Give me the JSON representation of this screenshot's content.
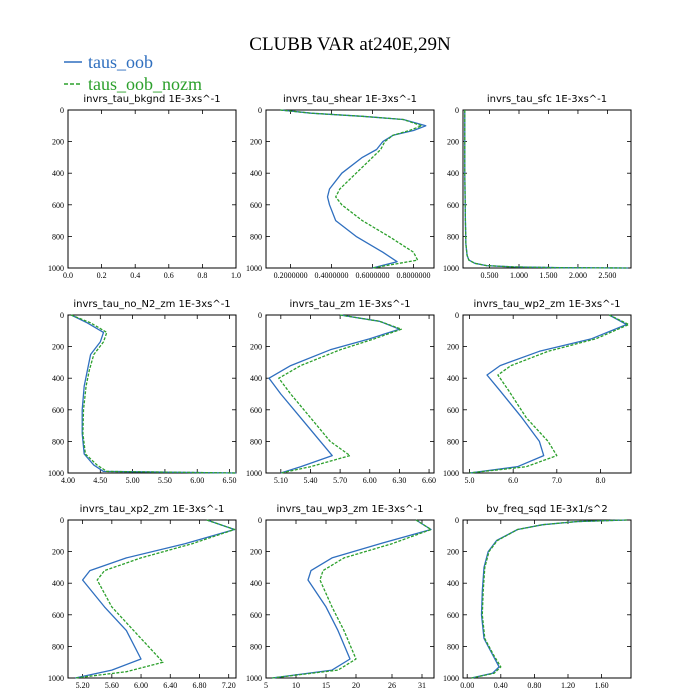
{
  "title": "CLUBB VAR at240E,29N",
  "legend": [
    {
      "label": "taus_oob",
      "color": "#2f6fbf",
      "dashed": false
    },
    {
      "label": "taus_oob_nozm",
      "color": "#2ca02c",
      "dashed": true
    }
  ],
  "chart_data": [
    {
      "type": "line",
      "title": "invrs_tau_bkgnd   1E-3xs^-1",
      "xlim": [
        0.0,
        1.0
      ],
      "xticks": [
        0.0,
        0.2,
        0.4,
        0.6,
        0.8,
        1.0
      ],
      "xtick_labels": [
        "0.0",
        "0.2",
        "0.4",
        "0.6",
        "0.8",
        "1.0"
      ],
      "ylim": [
        1000,
        0
      ],
      "yticks": [
        0,
        200,
        400,
        600,
        800,
        1000
      ],
      "series": []
    },
    {
      "type": "line",
      "title": "invrs_tau_shear   1E-3xs^-1",
      "xlim": [
        0.08,
        0.9
      ],
      "xticks": [
        0.2,
        0.4,
        0.6,
        0.8
      ],
      "xtick_labels": [
        "0.2000000",
        "0.4000000",
        "0.6000000",
        "0.8000000"
      ],
      "ylim": [
        1000,
        0
      ],
      "yticks": [
        0,
        200,
        400,
        600,
        800,
        1000
      ],
      "series": [
        {
          "x": [
            0.15,
            0.3,
            0.55,
            0.75,
            0.86,
            0.8,
            0.7,
            0.65,
            0.62,
            0.55,
            0.45,
            0.39,
            0.38,
            0.39,
            0.42,
            0.52,
            0.65,
            0.72,
            0.6
          ],
          "y": [
            0,
            20,
            40,
            60,
            100,
            130,
            160,
            200,
            250,
            300,
            400,
            500,
            550,
            600,
            700,
            800,
            900,
            960,
            1000
          ]
        },
        {
          "x": [
            0.15,
            0.3,
            0.55,
            0.75,
            0.84,
            0.78,
            0.7,
            0.66,
            0.64,
            0.6,
            0.52,
            0.44,
            0.42,
            0.45,
            0.55,
            0.68,
            0.8,
            0.82,
            0.6
          ],
          "y": [
            0,
            20,
            40,
            60,
            100,
            130,
            160,
            200,
            250,
            300,
            400,
            500,
            550,
            600,
            700,
            800,
            900,
            950,
            1000
          ]
        }
      ]
    },
    {
      "type": "line",
      "title": "invrs_tau_sfc   1E-3xs^-1",
      "xlim": [
        0.05,
        2.9
      ],
      "xticks": [
        0.5,
        1.0,
        1.5,
        2.0,
        2.5
      ],
      "xtick_labels": [
        "0.500",
        "1.000",
        "1.500",
        "2.000",
        "2.500"
      ],
      "ylim": [
        1000,
        0
      ],
      "yticks": [
        0,
        200,
        400,
        600,
        800,
        1000
      ],
      "series": [
        {
          "x": [
            0.08,
            0.08,
            0.09,
            0.1,
            0.12,
            0.15,
            0.25,
            0.45,
            0.9,
            1.7,
            2.85
          ],
          "y": [
            0,
            400,
            700,
            850,
            920,
            950,
            970,
            985,
            993,
            998,
            1000
          ]
        },
        {
          "x": [
            0.08,
            0.08,
            0.09,
            0.1,
            0.12,
            0.15,
            0.25,
            0.45,
            0.9,
            1.7,
            2.85
          ],
          "y": [
            0,
            400,
            700,
            850,
            920,
            950,
            970,
            985,
            993,
            998,
            1000
          ]
        }
      ]
    },
    {
      "type": "line",
      "title": "invrs_tau_no_N2_zm   1E-3xs^-1",
      "xlim": [
        4.0,
        6.6
      ],
      "xticks": [
        4.0,
        4.5,
        5.0,
        5.5,
        6.0,
        6.5
      ],
      "xtick_labels": [
        "4.00",
        "4.50",
        "5.00",
        "5.50",
        "6.00",
        "6.50"
      ],
      "ylim": [
        1000,
        0
      ],
      "yticks": [
        0,
        200,
        400,
        600,
        800,
        1000
      ],
      "series": [
        {
          "x": [
            4.05,
            4.3,
            4.55,
            4.5,
            4.35,
            4.3,
            4.25,
            4.22,
            4.22,
            4.25,
            4.4,
            4.55,
            6.6
          ],
          "y": [
            0,
            50,
            110,
            170,
            250,
            350,
            450,
            600,
            750,
            880,
            950,
            990,
            1000
          ]
        },
        {
          "x": [
            4.05,
            4.35,
            4.6,
            4.55,
            4.4,
            4.33,
            4.28,
            4.24,
            4.23,
            4.27,
            4.45,
            4.6,
            6.6
          ],
          "y": [
            0,
            50,
            110,
            170,
            250,
            350,
            450,
            600,
            750,
            880,
            950,
            990,
            1000
          ]
        }
      ]
    },
    {
      "type": "line",
      "title": "invrs_tau_zm   1E-3xs^-1",
      "xlim": [
        4.95,
        6.65
      ],
      "xticks": [
        5.1,
        5.4,
        5.7,
        6.0,
        6.3,
        6.6
      ],
      "xtick_labels": [
        "5.10",
        "5.40",
        "5.70",
        "6.00",
        "6.30",
        "6.60"
      ],
      "ylim": [
        1000,
        0
      ],
      "yticks": [
        0,
        200,
        400,
        600,
        800,
        1000
      ],
      "series": [
        {
          "x": [
            5.7,
            6.1,
            6.3,
            6.0,
            5.6,
            5.2,
            4.98,
            5.1,
            5.3,
            5.5,
            5.62,
            5.3,
            5.1
          ],
          "y": [
            0,
            40,
            90,
            150,
            220,
            320,
            400,
            500,
            650,
            800,
            890,
            960,
            1000
          ]
        },
        {
          "x": [
            5.7,
            6.1,
            6.32,
            6.05,
            5.7,
            5.3,
            5.08,
            5.2,
            5.4,
            5.6,
            5.8,
            5.4,
            5.1
          ],
          "y": [
            0,
            40,
            90,
            150,
            220,
            320,
            400,
            500,
            650,
            800,
            890,
            960,
            1000
          ]
        }
      ]
    },
    {
      "type": "line",
      "title": "invrs_tau_wp2_zm   1E-3xs^-1",
      "xlim": [
        4.85,
        8.7
      ],
      "xticks": [
        5.0,
        6.0,
        7.0,
        8.0
      ],
      "xtick_labels": [
        "5.0",
        "6.0",
        "7.0",
        "8.0"
      ],
      "ylim": [
        1000,
        0
      ],
      "yticks": [
        0,
        200,
        400,
        600,
        800,
        1000
      ],
      "series": [
        {
          "x": [
            8.2,
            8.6,
            7.8,
            6.6,
            5.7,
            5.4,
            5.7,
            6.2,
            6.6,
            6.7,
            6.1,
            5.0
          ],
          "y": [
            0,
            60,
            150,
            230,
            320,
            380,
            480,
            650,
            800,
            890,
            960,
            1000
          ]
        },
        {
          "x": [
            8.2,
            8.65,
            7.9,
            6.8,
            5.95,
            5.65,
            5.9,
            6.3,
            6.8,
            7.0,
            6.3,
            5.0
          ],
          "y": [
            0,
            60,
            150,
            230,
            320,
            380,
            480,
            650,
            800,
            890,
            960,
            1000
          ]
        }
      ]
    },
    {
      "type": "line",
      "title": "invrs_tau_xp2_zm   1E-3xs^-1",
      "xlim": [
        5.0,
        7.3
      ],
      "xticks": [
        5.2,
        5.6,
        6.0,
        6.4,
        6.8,
        7.2
      ],
      "xtick_labels": [
        "5.20",
        "5.60",
        "6.00",
        "6.40",
        "6.80",
        "7.20"
      ],
      "ylim": [
        1000,
        0
      ],
      "yticks": [
        0,
        200,
        400,
        600,
        800,
        1000
      ],
      "series": [
        {
          "x": [
            6.9,
            7.28,
            6.6,
            5.8,
            5.3,
            5.2,
            5.5,
            5.8,
            6.0,
            5.6,
            5.1
          ],
          "y": [
            0,
            60,
            150,
            240,
            320,
            380,
            550,
            700,
            880,
            950,
            1000
          ]
        },
        {
          "x": [
            6.9,
            7.28,
            6.7,
            6.0,
            5.5,
            5.4,
            5.6,
            5.9,
            6.3,
            5.8,
            5.1
          ],
          "y": [
            0,
            60,
            150,
            240,
            320,
            380,
            550,
            700,
            900,
            960,
            1000
          ]
        }
      ]
    },
    {
      "type": "line",
      "title": "invrs_tau_wp3_zm   1E-3xs^-1",
      "xlim": [
        5.0,
        33.0
      ],
      "xticks": [
        5,
        10,
        15,
        20,
        26,
        31
      ],
      "xtick_labels": [
        "5",
        "10",
        "15",
        "20",
        "26",
        "31"
      ],
      "ylim": [
        1000,
        0
      ],
      "yticks": [
        0,
        200,
        400,
        600,
        800,
        1000
      ],
      "series": [
        {
          "x": [
            30.0,
            32.5,
            24.0,
            16.0,
            12.5,
            12.0,
            15.0,
            17.0,
            19.0,
            16.0,
            6.0
          ],
          "y": [
            0,
            60,
            150,
            240,
            320,
            380,
            550,
            700,
            880,
            950,
            1000
          ]
        },
        {
          "x": [
            30.0,
            32.5,
            26.0,
            18.0,
            14.5,
            14.0,
            16.0,
            18.0,
            20.0,
            17.0,
            6.0
          ],
          "y": [
            0,
            60,
            150,
            240,
            320,
            380,
            550,
            700,
            880,
            950,
            1000
          ]
        }
      ]
    },
    {
      "type": "line",
      "title": "bv_freq_sqd   1E-3x1/s^2",
      "xlim": [
        -0.05,
        1.95
      ],
      "xticks": [
        0.0,
        0.4,
        0.8,
        1.2,
        1.6
      ],
      "xtick_labels": [
        "0.00",
        "0.40",
        "0.80",
        "1.20",
        "1.60"
      ],
      "ylim": [
        1000,
        0
      ],
      "yticks": [
        0,
        200,
        400,
        600,
        800,
        1000
      ],
      "series": [
        {
          "x": [
            1.9,
            1.3,
            0.9,
            0.6,
            0.35,
            0.25,
            0.2,
            0.18,
            0.17,
            0.2,
            0.3,
            0.38,
            0.3,
            0.05
          ],
          "y": [
            0,
            10,
            30,
            60,
            130,
            200,
            300,
            450,
            600,
            750,
            850,
            930,
            970,
            1000
          ]
        },
        {
          "x": [
            1.9,
            1.3,
            0.9,
            0.6,
            0.36,
            0.26,
            0.21,
            0.19,
            0.18,
            0.21,
            0.31,
            0.4,
            0.32,
            0.05
          ],
          "y": [
            0,
            10,
            30,
            60,
            130,
            200,
            300,
            450,
            600,
            750,
            850,
            930,
            970,
            1000
          ]
        }
      ]
    }
  ]
}
